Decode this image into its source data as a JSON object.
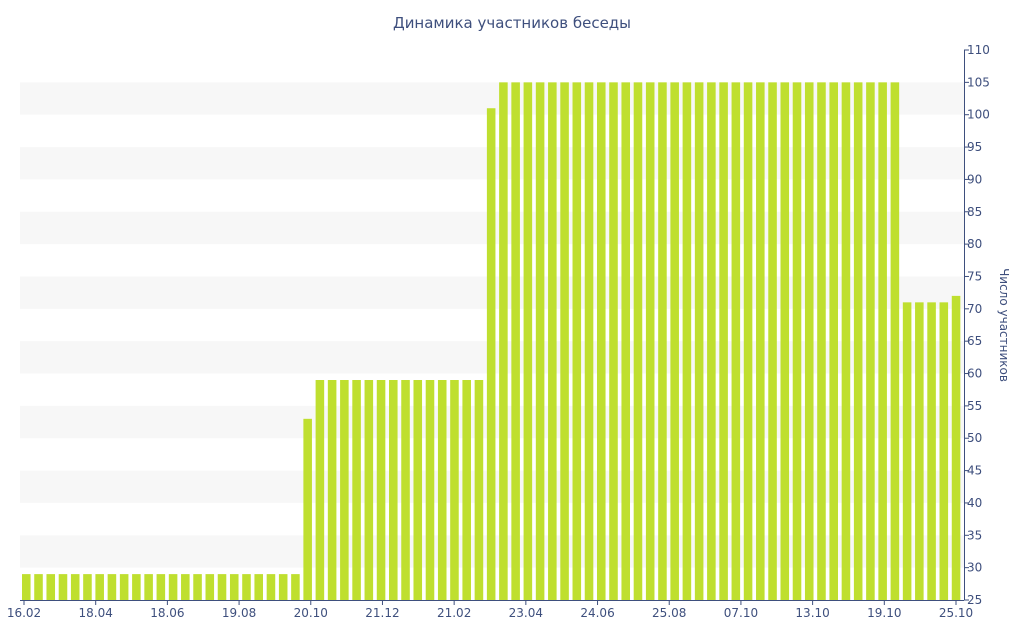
{
  "chart_data": {
    "type": "bar",
    "title": "Динамика участников беседы",
    "xlabel": "",
    "ylabel": "Число участников",
    "ylim": [
      25,
      110
    ],
    "ytick_step": 5,
    "y_axis_position": "right",
    "grid": "alternating-bands",
    "x_tick_labels": [
      "16.02",
      "18.04",
      "18.06",
      "19.08",
      "20.10",
      "21.12",
      "21.02",
      "23.04",
      "24.06",
      "25.08",
      "07.10",
      "13.10",
      "19.10",
      "25.10"
    ],
    "values": [
      29,
      29,
      29,
      29,
      29,
      29,
      29,
      29,
      29,
      29,
      29,
      29,
      29,
      29,
      29,
      29,
      29,
      29,
      29,
      29,
      29,
      29,
      29,
      53,
      59,
      59,
      59,
      59,
      59,
      59,
      59,
      59,
      59,
      59,
      59,
      59,
      59,
      59,
      101,
      105,
      105,
      105,
      105,
      105,
      105,
      105,
      105,
      105,
      105,
      105,
      105,
      105,
      105,
      105,
      105,
      105,
      105,
      105,
      105,
      105,
      105,
      105,
      105,
      105,
      105,
      105,
      105,
      105,
      105,
      105,
      105,
      105,
      71,
      71,
      71,
      71,
      72
    ],
    "bar_color": "#bfdf2f",
    "band_color": "#f7f7f7",
    "axis_color": "#3e4f7d"
  }
}
